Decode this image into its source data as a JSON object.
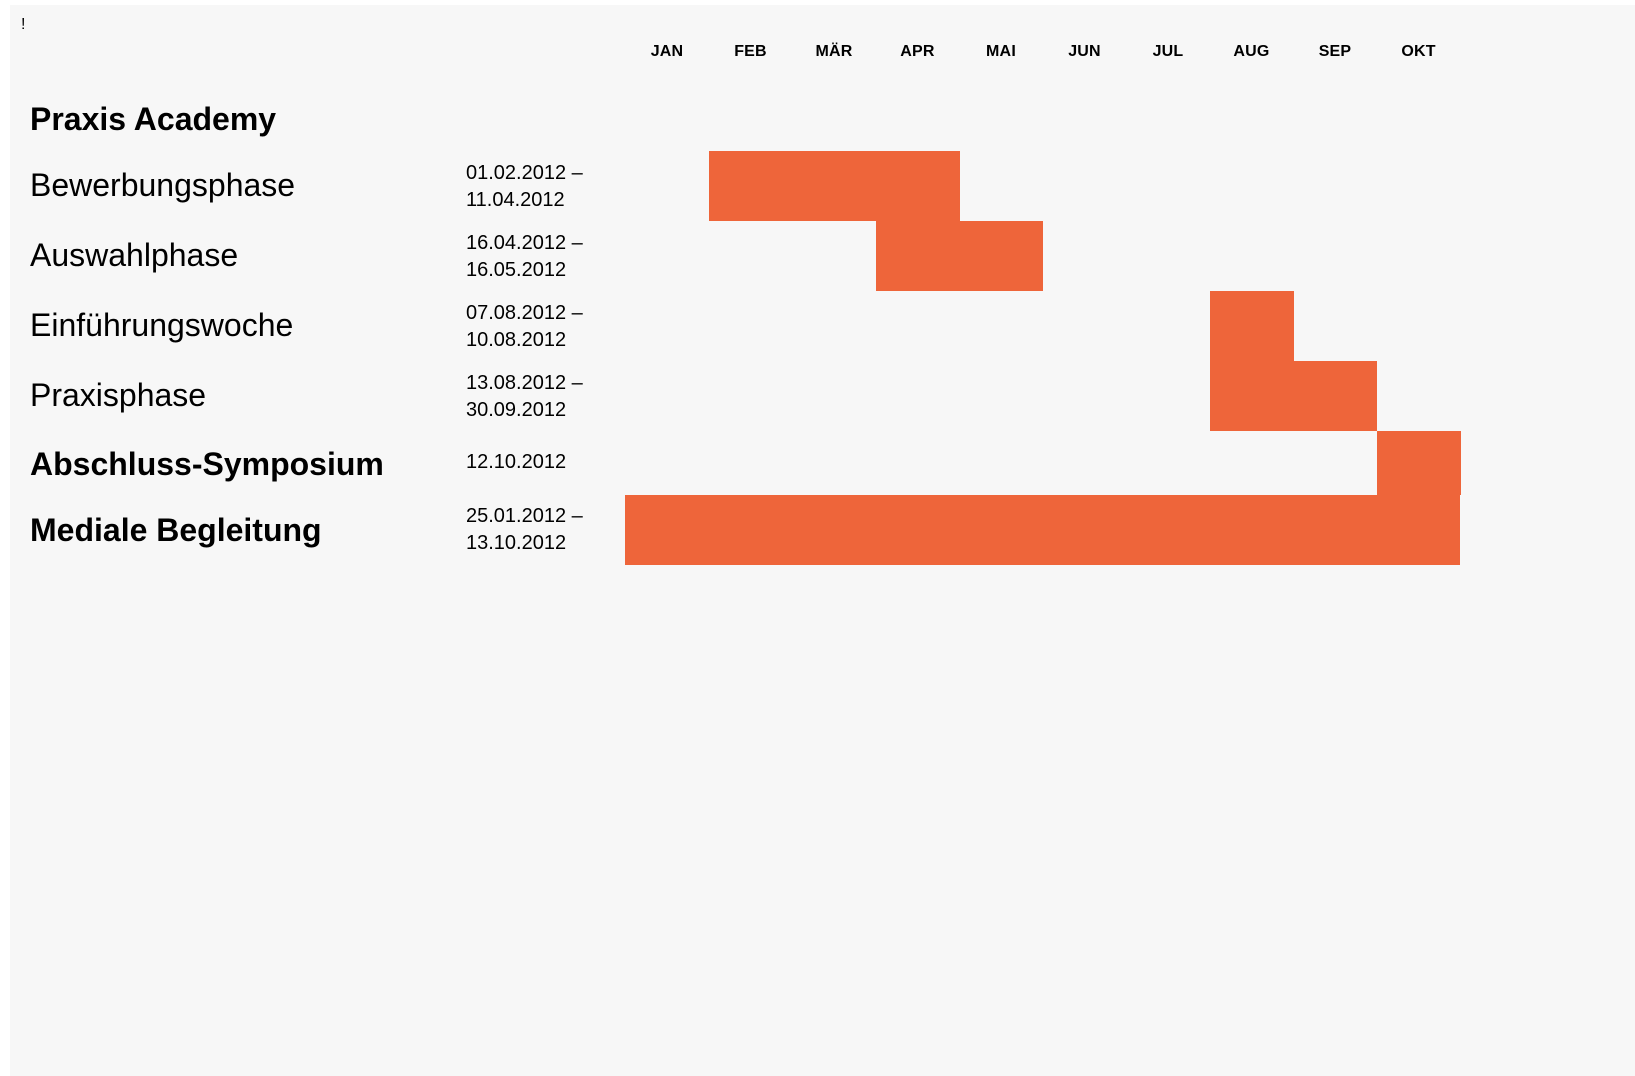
{
  "cursor_mark": "!",
  "chart_data": {
    "type": "gantt",
    "title": "Praxis Academy",
    "months": [
      "JAN",
      "FEB",
      "MÄR",
      "APR",
      "MAI",
      "JUN",
      "JUL",
      "AUG",
      "SEP",
      "OKT"
    ],
    "bar_color": "#ee653a",
    "tasks": [
      {
        "name": "Bewerbungsphase",
        "bold": false,
        "date_line1": "01.02.2012 –",
        "date_line2": "11.04.2012",
        "start_month": "FEB",
        "end_month": "APR"
      },
      {
        "name": "Auswahlphase",
        "bold": false,
        "date_line1": "16.04.2012 –",
        "date_line2": "16.05.2012",
        "start_month": "APR",
        "end_month": "MAI"
      },
      {
        "name": "Einführungswoche",
        "bold": false,
        "date_line1": "07.08.2012 –",
        "date_line2": "10.08.2012",
        "start_month": "AUG",
        "end_month": "AUG"
      },
      {
        "name": "Praxisphase",
        "bold": false,
        "date_line1": "13.08.2012 –",
        "date_line2": "30.09.2012",
        "start_month": "AUG",
        "end_month": "SEP"
      },
      {
        "name": "Abschluss-Symposium",
        "bold": true,
        "date_line1": "12.10.2012",
        "date_line2": "",
        "start_month": "OKT",
        "end_month": "OKT"
      },
      {
        "name": "Mediale Begleitung",
        "bold": true,
        "date_line1": "25.01.2012 –",
        "date_line2": "13.10.2012",
        "start_month": "JAN",
        "end_month": "OKT"
      }
    ]
  }
}
